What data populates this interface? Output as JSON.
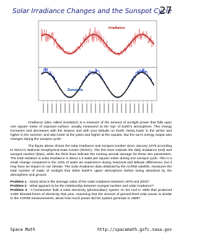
{
  "header": {
    "title": "Solar Irradiance Changes and the Sunspot Cycle",
    "page_number": "27"
  },
  "figure": {
    "panels": [
      "Irradiance",
      "Sunspots"
    ]
  },
  "paragraphs": [
    "Irradiance (also called insolation) is a measure of the amount of sunlight power that falls upon one square meter of exposed surface, usually measured at the 'top' of Earth's atmosphere. This energy increases and decreases with the season and with your latitude on Earth, being lower in the winter and higher in the summer, and also lower at the poles and higher at the equator. But the sun's energy output also changes during the sunspot cycle!",
    "The figure above shows the solar irradiance and sunspot number since January 1979 according to NOAA's National Geophysical Data Center (NGDC). The thin lines indicate the daily irradiance (red) and sunspot number (blue), while the thick lines indicate the running annual average for these two parameters. The total variation in solar irradiance is about 1.3 watts per square meter during one sunspot cycle. This is a small change compared to the 100s of watts we experience during seasonal and latitude differences, but it may have an impact on our climate. The solar irradiance data obtained by the ACRIM satellite, measures the total number of watts of sunlight that strike Earth's upper atmosphere before being absorbed by the atmosphere and ground."
  ],
  "problems": [
    {
      "label": "Problem 1",
      "text": "- About what is the average value of the solar irradiance between 1978 and 2003?"
    },
    {
      "label": "Problem 2",
      "text": "- What appears to be the relationship between sunspot number and solar irradiance?"
    },
    {
      "label": "Problem 3",
      "text": "- A homeowner built a solar electricity (photovoltaic) system on his roof in 1985 that produced 3,000 kilowatt-hours of electricity that year. Assuming that the amount of ground-level solar power is similar to the ACRIM measurements, about how much power did his system generate in 1989?"
    }
  ],
  "footer": {
    "left": "Space Math",
    "right": "http://spacemath.gsfc.nasa.gov"
  }
}
